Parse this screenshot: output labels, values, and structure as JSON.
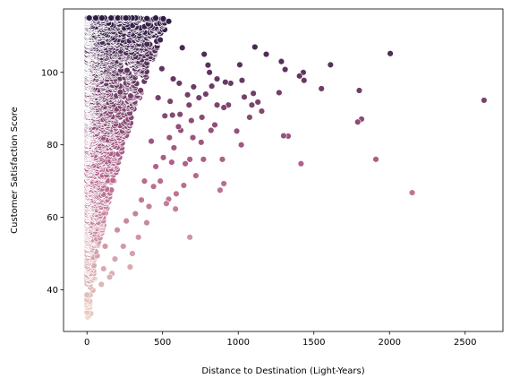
{
  "chart_data": {
    "type": "scatter",
    "title": "",
    "xlabel": "Distance to Destination (Light-Years)",
    "ylabel": "Customer Satisfaction Score",
    "xlim": [
      -155,
      2750
    ],
    "ylim": [
      28.5,
      117.5
    ],
    "xticks": [
      0,
      500,
      1000,
      1500,
      2000,
      2500
    ],
    "yticks": [
      40,
      60,
      80,
      100
    ],
    "grid": false,
    "legend": "none",
    "hue_variable": "satisfaction",
    "color_low": "#ebcfc2",
    "color_mid": "#b5628c",
    "color_high": "#2f1c45",
    "marker_edge_color": "#ffffff",
    "dense_cluster": {
      "x_range": [
        0,
        560
      ],
      "y_range": [
        32,
        115
      ],
      "point_count": 2600,
      "seed": 7
    },
    "points": [
      [
        2625,
        92.3
      ],
      [
        2150,
        66.8
      ],
      [
        2005,
        105.2
      ],
      [
        1910,
        76.0
      ],
      [
        1815,
        87.1
      ],
      [
        1800,
        95.0
      ],
      [
        1790,
        86.3
      ],
      [
        1610,
        102.1
      ],
      [
        1550,
        95.5
      ],
      [
        1430,
        100.0
      ],
      [
        1435,
        97.8
      ],
      [
        1415,
        74.8
      ],
      [
        1405,
        99.0
      ],
      [
        1330,
        82.4
      ],
      [
        1310,
        100.8
      ],
      [
        1300,
        82.5
      ],
      [
        1285,
        103.0
      ],
      [
        1270,
        94.4
      ],
      [
        1185,
        105.0
      ],
      [
        1155,
        89.3
      ],
      [
        1130,
        91.8
      ],
      [
        1110,
        107.0
      ],
      [
        1100,
        94.2
      ],
      [
        1090,
        91.0
      ],
      [
        1075,
        87.6
      ],
      [
        1040,
        93.2
      ],
      [
        1025,
        97.8
      ],
      [
        1020,
        80.0
      ],
      [
        1010,
        102.1
      ],
      [
        990,
        83.8
      ],
      [
        950,
        97.0
      ],
      [
        935,
        91.0
      ],
      [
        915,
        97.3
      ],
      [
        905,
        90.3
      ],
      [
        895,
        76.0
      ],
      [
        905,
        69.3
      ],
      [
        880,
        67.5
      ],
      [
        860,
        98.2
      ],
      [
        860,
        91.0
      ],
      [
        845,
        85.5
      ],
      [
        825,
        96.2
      ],
      [
        820,
        84.0
      ],
      [
        810,
        100.0
      ],
      [
        800,
        102.0
      ],
      [
        785,
        94.0
      ],
      [
        775,
        105.0
      ],
      [
        770,
        76.0
      ],
      [
        760,
        87.6
      ],
      [
        755,
        80.7
      ],
      [
        740,
        93.0
      ],
      [
        720,
        71.5
      ],
      [
        705,
        96.0
      ],
      [
        700,
        82.0
      ],
      [
        690,
        86.7
      ],
      [
        680,
        54.5
      ],
      [
        680,
        76.0
      ],
      [
        675,
        91.0
      ],
      [
        665,
        93.8
      ],
      [
        650,
        74.8
      ],
      [
        640,
        68.8
      ],
      [
        630,
        106.8
      ],
      [
        620,
        84.0
      ],
      [
        615,
        88.4
      ],
      [
        610,
        97.0
      ],
      [
        605,
        85.0
      ],
      [
        590,
        66.5
      ],
      [
        585,
        62.3
      ],
      [
        575,
        79.2
      ],
      [
        570,
        98.2
      ],
      [
        565,
        88.2
      ],
      [
        560,
        75.2
      ],
      [
        550,
        92.0
      ],
      [
        545,
        82.0
      ],
      [
        540,
        65.0
      ],
      [
        525,
        63.8
      ],
      [
        515,
        88.0
      ],
      [
        505,
        76.5
      ],
      [
        495,
        101.0
      ],
      [
        485,
        70.0
      ],
      [
        470,
        93.0
      ],
      [
        455,
        74.0
      ],
      [
        440,
        68.5
      ],
      [
        425,
        81.0
      ],
      [
        410,
        63.0
      ],
      [
        395,
        58.5
      ],
      [
        380,
        70.0
      ],
      [
        360,
        64.8
      ],
      [
        340,
        54.5
      ],
      [
        320,
        61.0
      ],
      [
        300,
        50.0
      ],
      [
        285,
        46.3
      ],
      [
        260,
        59.0
      ],
      [
        240,
        52.0
      ],
      [
        200,
        56.5
      ],
      [
        185,
        48.5
      ],
      [
        165,
        44.5
      ],
      [
        150,
        43.5
      ],
      [
        120,
        52.0
      ],
      [
        110,
        45.8
      ],
      [
        95,
        41.5
      ]
    ]
  }
}
